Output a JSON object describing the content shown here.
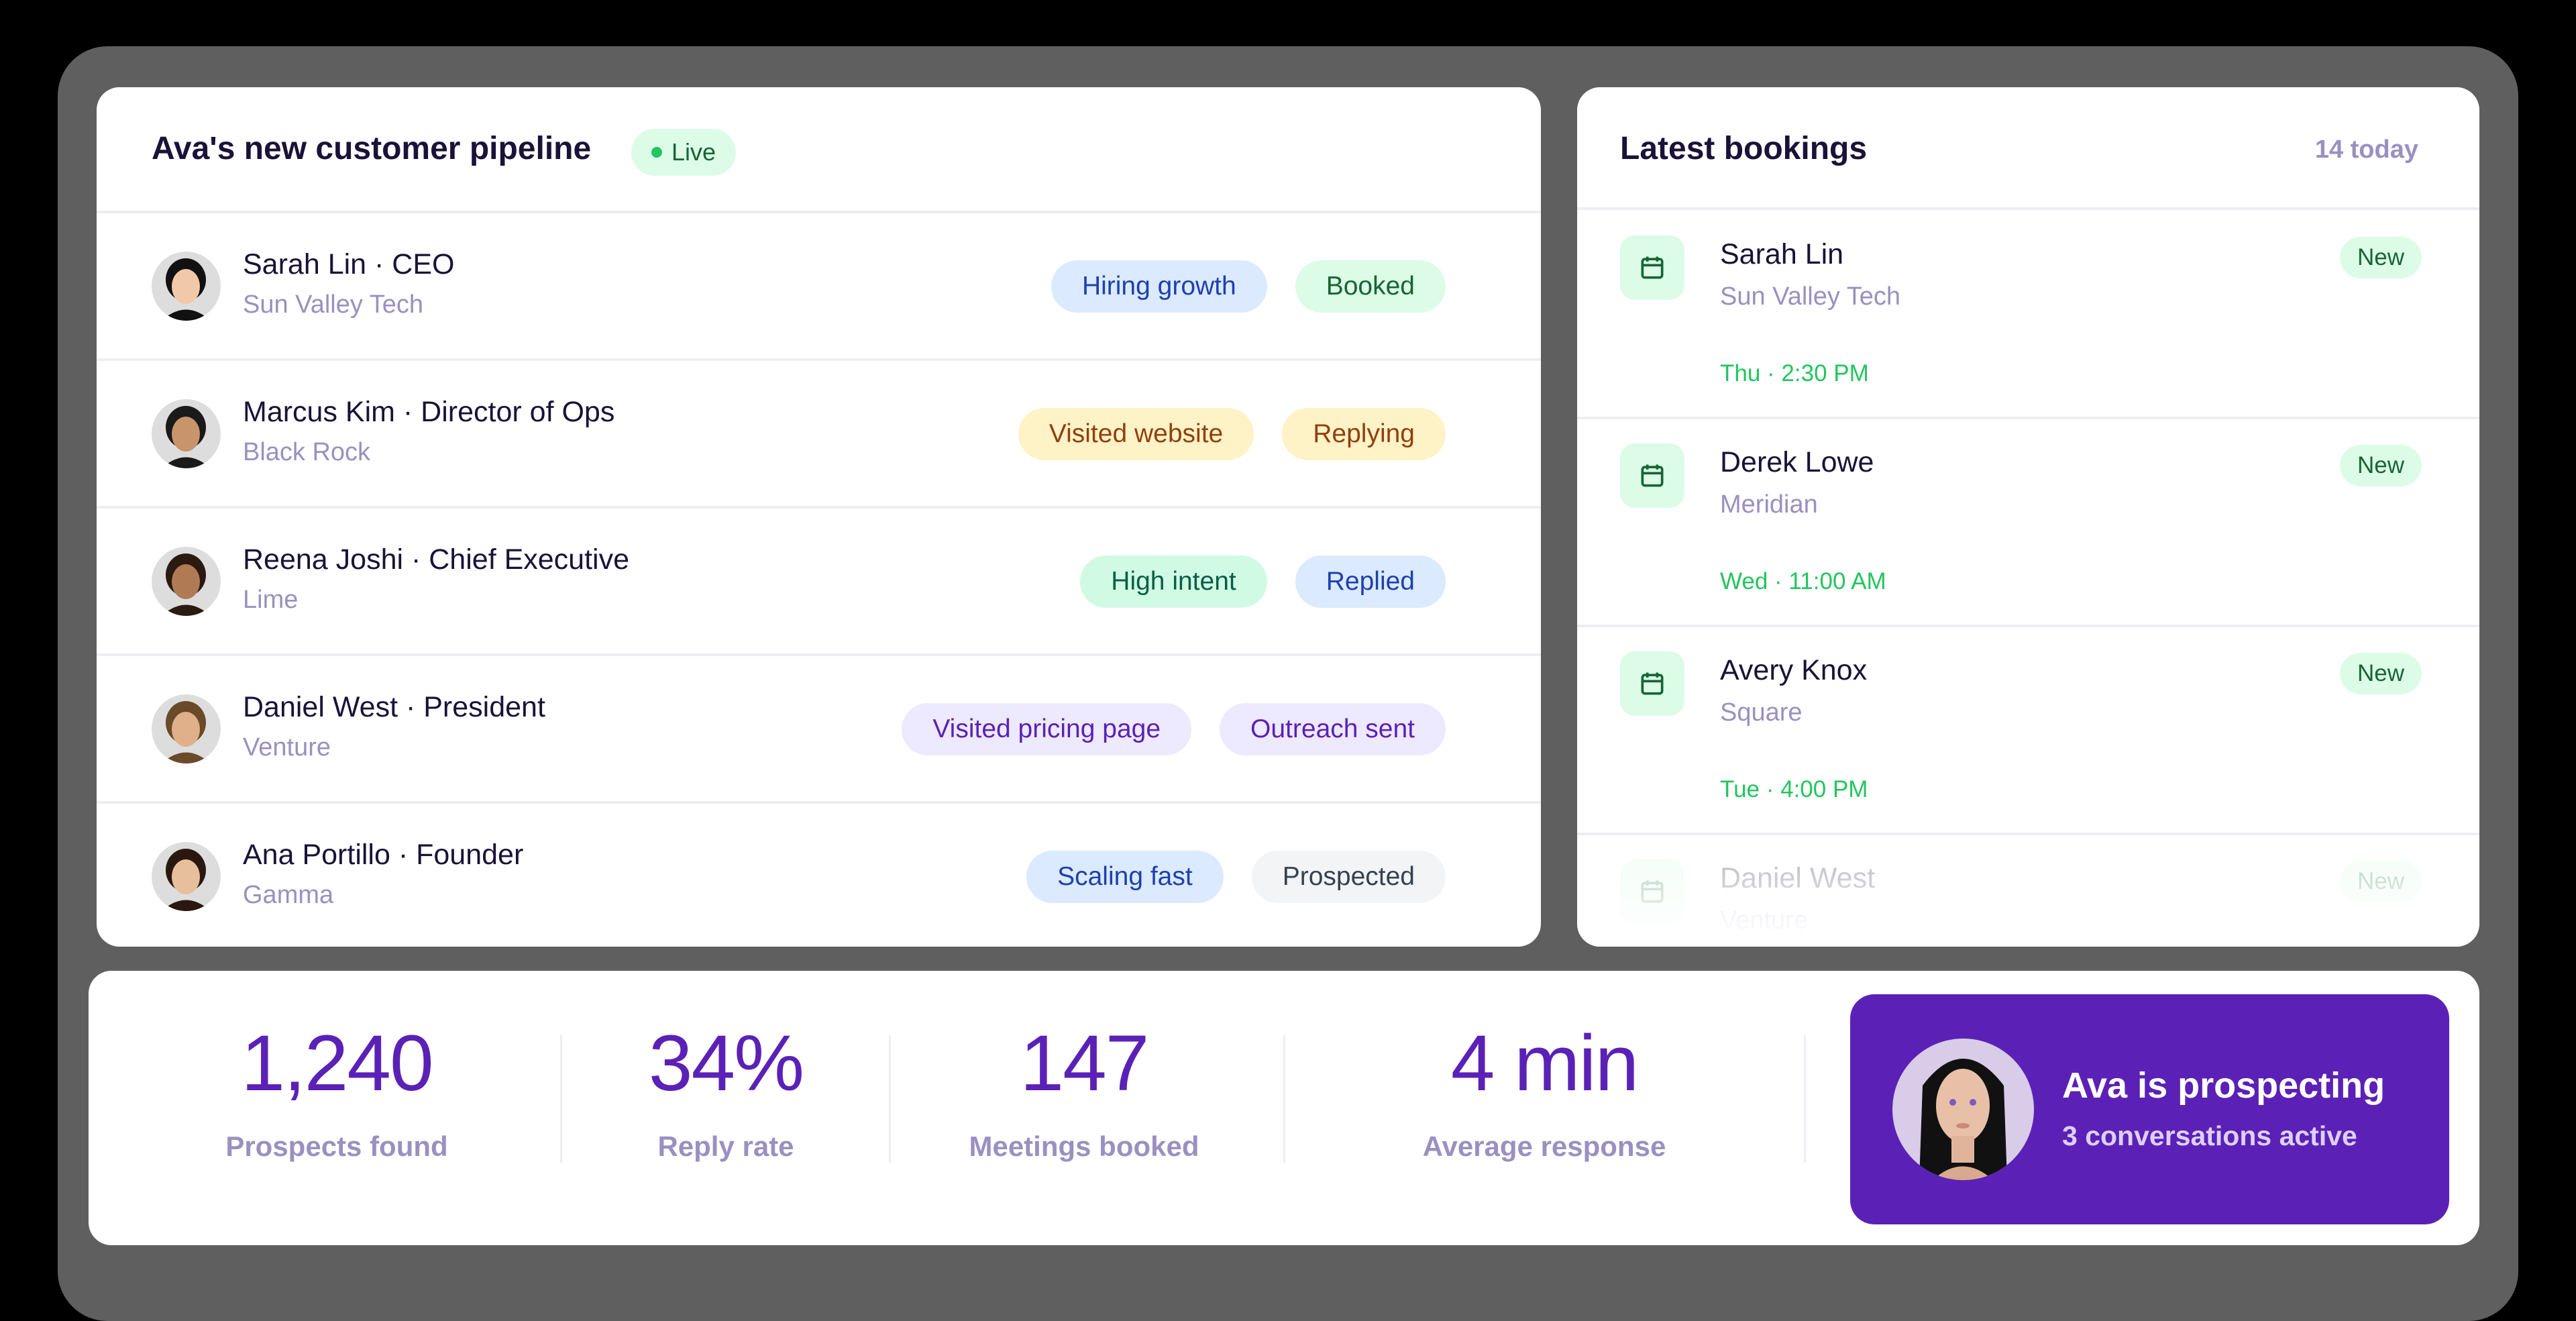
{
  "pipeline": {
    "title": "Ava's new customer pipeline",
    "live_label": "Live",
    "rows": [
      {
        "name": "Sarah Lin · CEO",
        "company": "Sun Valley Tech",
        "tags": [
          {
            "label": "Hiring growth",
            "bg": "#dbeafe",
            "fg": "#1e40af"
          },
          {
            "label": "Booked",
            "bg": "#dcfce7",
            "fg": "#166534"
          }
        ]
      },
      {
        "name": "Marcus Kim · Director of Ops",
        "company": "Black Rock",
        "tags": [
          {
            "label": "Visited website",
            "bg": "#fef3c7",
            "fg": "#92400e"
          },
          {
            "label": "Replying",
            "bg": "#fef3c7",
            "fg": "#92400e"
          }
        ]
      },
      {
        "name": "Reena Joshi · Chief Executive",
        "company": "Lime",
        "tags": [
          {
            "label": "High intent",
            "bg": "#d1fae5",
            "fg": "#065f46"
          },
          {
            "label": "Replied",
            "bg": "#dbeafe",
            "fg": "#1e40af"
          }
        ]
      },
      {
        "name": "Daniel West · President",
        "company": "Venture",
        "tags": [
          {
            "label": "Visited pricing page",
            "bg": "#ede9fe",
            "fg": "#5b21b6"
          },
          {
            "label": "Outreach sent",
            "bg": "#ede9fe",
            "fg": "#5b21b6"
          }
        ]
      },
      {
        "name": "Ana Portillo · Founder",
        "company": "Gamma",
        "tags": [
          {
            "label": "Scaling fast",
            "bg": "#dbeafe",
            "fg": "#1e40af"
          },
          {
            "label": "Prospected",
            "bg": "#f3f4f6",
            "fg": "#374151"
          }
        ]
      }
    ]
  },
  "bookings": {
    "title": "Latest bookings",
    "count": "14 today",
    "items": [
      {
        "name": "Sarah Lin",
        "company": "Sun Valley Tech",
        "time": "Thu · 2:30 PM",
        "badge": "New"
      },
      {
        "name": "Derek Lowe",
        "company": "Meridian",
        "time": "Wed · 11:00 AM",
        "badge": "New"
      },
      {
        "name": "Avery Knox",
        "company": "Square",
        "time": "Tue · 4:00 PM",
        "badge": "New"
      },
      {
        "name": "Daniel West",
        "company": "Venture",
        "badge": "New"
      }
    ]
  },
  "stats": [
    {
      "value": "1,240",
      "label": "Prospects found"
    },
    {
      "value": "34%",
      "label": "Reply rate"
    },
    {
      "value": "147",
      "label": "Meetings booked"
    },
    {
      "value": "4 min",
      "label": "Average response"
    }
  ],
  "agent": {
    "title": "Ava is prospecting",
    "subtitle": "3 conversations active"
  },
  "colors": {
    "accent": "#5b21b6",
    "live": "#22c55e"
  }
}
